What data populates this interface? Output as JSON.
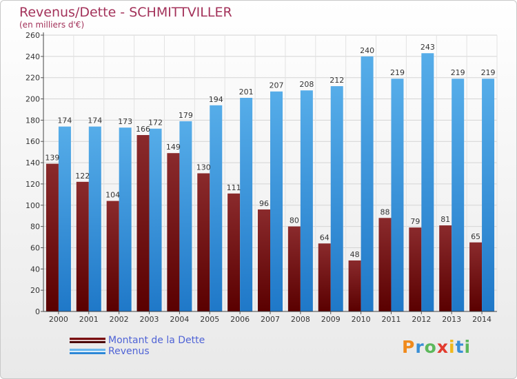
{
  "title": "Revenus/Dette - SCHMITTVILLER",
  "subtitle": "(en milliers d'€)",
  "logo": "Proxiti",
  "colors": {
    "dette": "#7b1214",
    "revenus": "#3d9de6",
    "title": "#a3325a",
    "legend_text": "#4f63d6"
  },
  "chart_data": {
    "type": "bar",
    "categories": [
      "2000",
      "2001",
      "2002",
      "2003",
      "2004",
      "2005",
      "2006",
      "2007",
      "2008",
      "2009",
      "2010",
      "2011",
      "2012",
      "2013",
      "2014"
    ],
    "series": [
      {
        "name": "Montant de la Dette",
        "values": [
          139,
          122,
          104,
          166,
          149,
          130,
          111,
          96,
          80,
          64,
          48,
          88,
          79,
          81,
          65
        ]
      },
      {
        "name": "Revenus",
        "values": [
          174,
          174,
          173,
          172,
          179,
          194,
          201,
          207,
          208,
          212,
          240,
          219,
          243,
          219,
          219
        ]
      }
    ],
    "yticks": [
      0,
      20,
      40,
      60,
      80,
      100,
      120,
      140,
      160,
      180,
      200,
      220,
      240,
      260
    ],
    "ylim": [
      0,
      260
    ],
    "grid": true,
    "legend": "bottom-left"
  }
}
